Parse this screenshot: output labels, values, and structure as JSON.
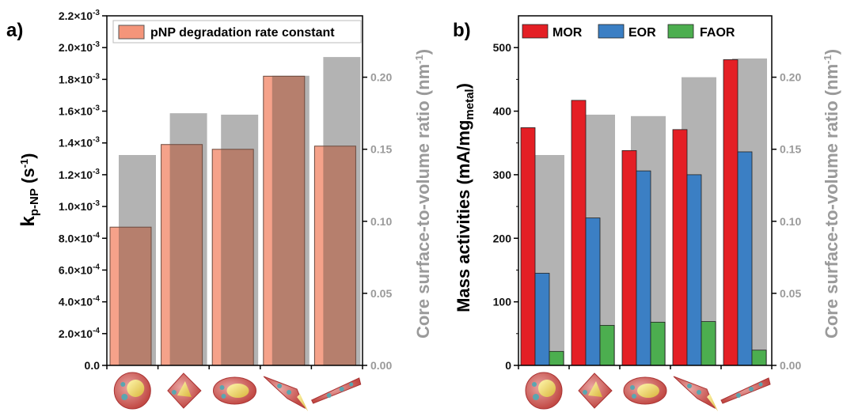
{
  "chart_data": [
    {
      "panel": "a)",
      "type": "bar",
      "categories": [
        "",
        "",
        "",
        "",
        ""
      ],
      "ylabel": "k",
      "ylabel_sub": "p-NP",
      "ylabel_unit": " (s",
      "ylabel_unit_sup": "-1",
      "ylabel_close": ")",
      "ylim": [
        0,
        0.0022
      ],
      "yticks": [
        0,
        0.0002,
        0.0004,
        0.0006,
        0.0008,
        0.001,
        0.0012,
        0.0014,
        0.0016,
        0.0018,
        0.002,
        0.0022
      ],
      "ytick_labels": [
        "0.0",
        "2.0×10",
        "4.0×10",
        "6.0×10",
        "8.0×10",
        "1.0×10",
        "1.2×10",
        "1.4×10",
        "1.6×10",
        "1.8×10",
        "2.0×10",
        "2.2×10"
      ],
      "ytick_exps": [
        "",
        "-4",
        "-4",
        "-4",
        "-4",
        "-3",
        "-3",
        "-3",
        "-3",
        "-3",
        "-3",
        "-3"
      ],
      "y2label": "Core surface-to-volume ratio (nm",
      "y2label_sup": "-1",
      "y2label_close": ")",
      "y2lim": [
        0,
        0.2426
      ],
      "y2ticks": [
        0,
        0.05,
        0.1,
        0.15,
        0.2
      ],
      "y2tick_labels": [
        "0.00",
        "0.05",
        "0.10",
        "0.15",
        "0.20"
      ],
      "series": [
        {
          "name": "pNP degradation rate constant",
          "values": [
            0.00087,
            0.00139,
            0.00136,
            0.00182,
            0.00138
          ],
          "color": "#f4957a"
        },
        {
          "axis": "right",
          "values": [
            0.146,
            0.175,
            0.174,
            0.201,
            0.214
          ],
          "color": "#b3b3b3"
        }
      ],
      "legend_position": "top"
    },
    {
      "panel": "b)",
      "type": "bar",
      "categories": [
        "",
        "",
        "",
        "",
        ""
      ],
      "ylabel": "Mass activities (mA/mg",
      "ylabel_sub": "metal",
      "ylabel_close": ")",
      "ylim": [
        0,
        550
      ],
      "yticks": [
        0,
        100,
        200,
        300,
        400,
        500
      ],
      "ytick_labels": [
        "0",
        "100",
        "200",
        "300",
        "400",
        "500"
      ],
      "y2label": "Core surface-to-volume ratio (nm",
      "y2label_sup": "-1",
      "y2label_close": ")",
      "y2lim": [
        0,
        0.2426
      ],
      "y2ticks": [
        0,
        0.05,
        0.1,
        0.15,
        0.2
      ],
      "y2tick_labels": [
        "0.00",
        "0.05",
        "0.10",
        "0.15",
        "0.20"
      ],
      "series": [
        {
          "name": "MOR",
          "values": [
            374,
            417,
            338,
            371,
            481
          ],
          "color": "#e41f25"
        },
        {
          "name": "EOR",
          "values": [
            145,
            232,
            306,
            300,
            336
          ],
          "color": "#3b7fc4"
        },
        {
          "name": "FAOR",
          "values": [
            22,
            63,
            68,
            69,
            24
          ],
          "color": "#4cae4f"
        },
        {
          "axis": "right",
          "values": [
            0.146,
            0.174,
            0.173,
            0.2,
            0.213
          ],
          "color": "#b3b3b3"
        }
      ],
      "legend_position": "top"
    }
  ],
  "icons": [
    "particle-sphere-icon",
    "particle-octahedron-icon",
    "particle-rod-icon",
    "particle-cone-icon",
    "particle-long-cone-icon"
  ]
}
